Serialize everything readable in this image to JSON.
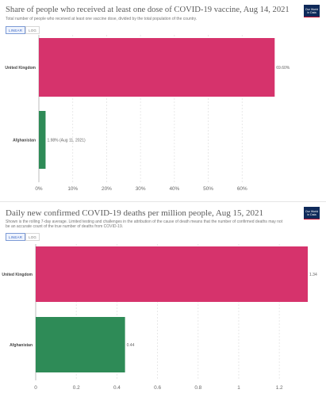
{
  "charts": [
    {
      "title": "Share of people who received at least one dose of COVID-19 vaccine, Aug 14, 2021",
      "subtitle": "Total number of people who received at least one vaccine dose, divided by the total population of the country.",
      "logo": "Our World in Data",
      "toggle": [
        "LINEAR",
        "LOG"
      ],
      "active_toggle": "LINEAR"
    },
    {
      "title": "Daily new confirmed COVID-19 deaths per million people, Aug 15, 2021",
      "subtitle": "Shown is the rolling 7-day average. Limited testing and challenges in the attribution of the cause of death means that the number of confirmed deaths may not be an accurate count of the true number of deaths from COVID-19.",
      "logo": "Our World in Data",
      "toggle": [
        "LINEAR",
        "LOG"
      ],
      "active_toggle": "LINEAR"
    }
  ],
  "chart_data": [
    {
      "type": "bar",
      "orientation": "horizontal",
      "categories": [
        "United Kingdom",
        "Afghanistan"
      ],
      "values": [
        69.6,
        1.98
      ],
      "value_labels": [
        "69.60%",
        "1.98% (Aug 11, 2021)"
      ],
      "colors": [
        "#d6336c",
        "#2e8b57"
      ],
      "xlim": [
        0,
        70
      ],
      "xticks": [
        0,
        10,
        20,
        30,
        40,
        50,
        60
      ],
      "xtick_labels": [
        "0%",
        "10%",
        "20%",
        "30%",
        "40%",
        "50%",
        "60%"
      ],
      "grid": true
    },
    {
      "type": "bar",
      "orientation": "horizontal",
      "categories": [
        "United Kingdom",
        "Afghanistan"
      ],
      "values": [
        1.34,
        0.44
      ],
      "value_labels": [
        "1.34",
        "0.44"
      ],
      "colors": [
        "#d6336c",
        "#2e8b57"
      ],
      "xlim": [
        0,
        1.34
      ],
      "xticks": [
        0,
        0.2,
        0.4,
        0.6,
        0.8,
        1,
        1.2
      ],
      "xtick_labels": [
        "0",
        "0.2",
        "0.4",
        "0.6",
        "0.8",
        "1",
        "1.2"
      ],
      "grid": true
    }
  ]
}
